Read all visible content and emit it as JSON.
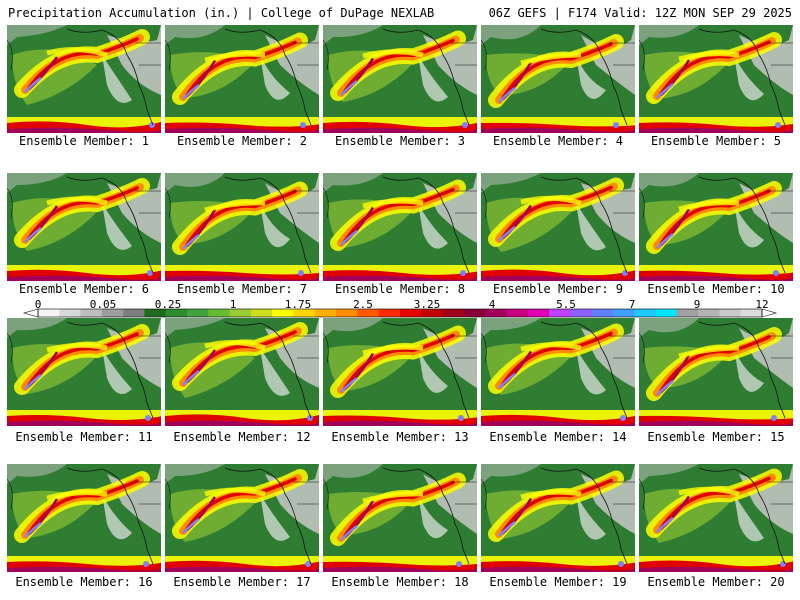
{
  "header": {
    "left": "Precipitation Accumulation (in.) | College of DuPage NEXLAB",
    "right": "06Z GEFS | F174 Valid: 12Z MON SEP 29 2025"
  },
  "members": [
    "Ensemble Member: 1",
    "Ensemble Member: 2",
    "Ensemble Member: 3",
    "Ensemble Member: 4",
    "Ensemble Member: 5",
    "Ensemble Member: 6",
    "Ensemble Member: 7",
    "Ensemble Member: 8",
    "Ensemble Member: 9",
    "Ensemble Member: 10",
    "Ensemble Member: 11",
    "Ensemble Member: 12",
    "Ensemble Member: 13",
    "Ensemble Member: 14",
    "Ensemble Member: 15",
    "Ensemble Member: 16",
    "Ensemble Member: 17",
    "Ensemble Member: 18",
    "Ensemble Member: 19",
    "Ensemble Member: 20"
  ],
  "colorbar": {
    "ticks": [
      "0",
      "0.05",
      "0.25",
      "1",
      "1.75",
      "2.5",
      "3.25",
      "4",
      "5.5",
      "7",
      "9",
      "12"
    ],
    "colors": [
      "#f4f4f4",
      "#d8d8d8",
      "#bdbdbd",
      "#9e9e9e",
      "#7e7e7e",
      "#1f6b1f",
      "#2e8b2e",
      "#3fa33f",
      "#66bb33",
      "#99cc33",
      "#ccdd22",
      "#ffff00",
      "#ffd700",
      "#ffb000",
      "#ff8c00",
      "#ff5a00",
      "#ff2a00",
      "#e60000",
      "#c00000",
      "#a00018",
      "#880033",
      "#a0005a",
      "#c80080",
      "#e000b4",
      "#c040ff",
      "#9060ff",
      "#6080ff",
      "#40a0ff",
      "#20c8ff",
      "#00e8ff",
      "#a0a0a0",
      "#b4b4b4",
      "#c8c8c8",
      "#dcdcdc"
    ]
  },
  "map_colors": {
    "base": "#2e7d32",
    "dry": "#c8c8c8",
    "light": "#9acd32",
    "moderate": "#ffff00",
    "heavy": "#ff8c00",
    "very_heavy": "#e00000",
    "extreme": "#a0005a",
    "max": "#8080ff"
  }
}
